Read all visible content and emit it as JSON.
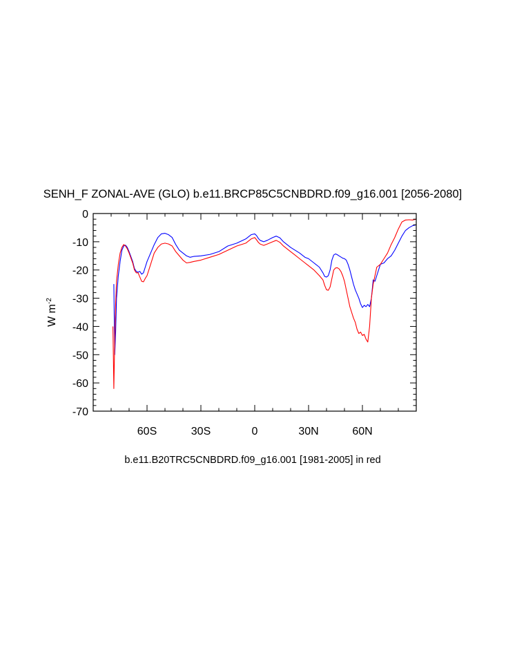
{
  "chart_data": {
    "type": "line",
    "title": "SENH_F ZONAL-AVE (GLO) b.e11.BRCP85C5CNBDRD.f09_g16.001 [2056-2080]",
    "xlabel": "b.e11.B20TRC5CNBDRD.f09_g16.001 [1981-2005] in red",
    "ylabel": {
      "base": "W m",
      "superscript": "-2"
    },
    "xlim": [
      -90,
      90
    ],
    "ylim": [
      -70,
      0
    ],
    "x_ticks": [
      {
        "value": -60,
        "label": "60S"
      },
      {
        "value": -30,
        "label": "30S"
      },
      {
        "value": 0,
        "label": "0"
      },
      {
        "value": 30,
        "label": "30N"
      },
      {
        "value": 60,
        "label": "60N"
      }
    ],
    "y_ticks": [
      {
        "value": 0,
        "label": "0"
      },
      {
        "value": -10,
        "label": "-10"
      },
      {
        "value": -20,
        "label": "-20"
      },
      {
        "value": -30,
        "label": "-30"
      },
      {
        "value": -40,
        "label": "-40"
      },
      {
        "value": -50,
        "label": "-50"
      },
      {
        "value": -60,
        "label": "-60"
      },
      {
        "value": -70,
        "label": "-70"
      }
    ],
    "series": [
      {
        "color": "#0000ff",
        "x": [
          -78.5,
          -78,
          -77.5,
          -77,
          -76,
          -75,
          -74,
          -73,
          -72,
          -71,
          -70,
          -68,
          -67,
          -66,
          -65,
          -64,
          -63,
          -62,
          -61,
          -60,
          -58,
          -56,
          -54,
          -52,
          -50,
          -48,
          -46,
          -44,
          -42,
          -40,
          -38,
          -36,
          -34,
          -30,
          -25,
          -20,
          -15,
          -10,
          -5,
          -2,
          0,
          1,
          2,
          3,
          5,
          7,
          10,
          12,
          14,
          16,
          18,
          20,
          22,
          25,
          28,
          30,
          33,
          36,
          38,
          39,
          40,
          41,
          42,
          43,
          44,
          45,
          46,
          47,
          48,
          49,
          50,
          51,
          52,
          53,
          54,
          55,
          56,
          57,
          58,
          59,
          60,
          61,
          62,
          63,
          64,
          65,
          66,
          67,
          68,
          70,
          72,
          74,
          76,
          78,
          80,
          82,
          84,
          86,
          88,
          90
        ],
        "y": [
          -25,
          -50,
          -42,
          -30,
          -22,
          -17,
          -13,
          -11.5,
          -11.2,
          -12,
          -13.5,
          -17,
          -19.5,
          -20.5,
          -20.8,
          -20.5,
          -21.5,
          -21,
          -19,
          -17,
          -14,
          -11,
          -8.5,
          -7.2,
          -7,
          -7.5,
          -8.5,
          -11,
          -13,
          -14,
          -15,
          -15.5,
          -15.2,
          -15,
          -14.5,
          -13.5,
          -11.5,
          -10.5,
          -9,
          -7.5,
          -7.2,
          -7.8,
          -8.8,
          -9.5,
          -10,
          -9.5,
          -8.5,
          -8,
          -8.6,
          -10,
          -11,
          -12,
          -12.8,
          -14,
          -15.5,
          -16,
          -17.5,
          -19,
          -21,
          -22.3,
          -22.5,
          -22,
          -20,
          -16.5,
          -14.7,
          -14.3,
          -14.6,
          -15,
          -15.4,
          -15.8,
          -16,
          -16.5,
          -18,
          -20,
          -22.5,
          -25,
          -27,
          -28.5,
          -30,
          -32,
          -33.3,
          -32.5,
          -33,
          -32.2,
          -33,
          -30,
          -23.5,
          -24,
          -22,
          -18,
          -17.5,
          -16,
          -15,
          -13,
          -10.5,
          -8,
          -6,
          -5,
          -4.3,
          -4
        ]
      },
      {
        "color": "#ff0000",
        "x": [
          -79,
          -78.5,
          -78,
          -77.5,
          -77,
          -76,
          -75,
          -74,
          -73,
          -72,
          -71,
          -70,
          -68,
          -67,
          -66,
          -65,
          -64,
          -63,
          -62,
          -61,
          -60,
          -58,
          -56,
          -54,
          -52,
          -50,
          -48,
          -46,
          -44,
          -42,
          -40,
          -38,
          -36,
          -34,
          -30,
          -25,
          -20,
          -15,
          -10,
          -5,
          -2,
          0,
          1,
          2,
          3,
          5,
          7,
          10,
          12,
          14,
          16,
          18,
          20,
          22,
          25,
          28,
          30,
          33,
          36,
          38,
          39,
          40,
          41,
          42,
          43,
          44,
          45,
          46,
          47,
          48,
          49,
          50,
          51,
          52,
          53,
          54,
          55,
          56,
          57,
          58,
          59,
          60,
          61,
          62,
          63,
          64,
          65,
          66,
          67,
          68,
          70,
          72,
          74,
          76,
          78,
          80,
          82,
          84,
          86,
          88,
          90
        ],
        "y": [
          -40,
          -62,
          -45,
          -32,
          -24,
          -18,
          -14,
          -12,
          -11,
          -11.5,
          -12.5,
          -14,
          -17.5,
          -20,
          -21,
          -21,
          -22.5,
          -24,
          -24.2,
          -23,
          -22,
          -18,
          -14,
          -12,
          -10.8,
          -10.5,
          -10.8,
          -11.5,
          -13.5,
          -15,
          -16.5,
          -17.5,
          -17.3,
          -17,
          -16.5,
          -15.5,
          -14.5,
          -13,
          -11.5,
          -10.5,
          -9,
          -8.5,
          -9.3,
          -10.2,
          -10.8,
          -11.3,
          -10.8,
          -10,
          -9.5,
          -10.2,
          -11.5,
          -12.5,
          -13.5,
          -14.5,
          -16,
          -17.5,
          -18.5,
          -20,
          -22,
          -23.5,
          -25.5,
          -27,
          -27.2,
          -26,
          -23,
          -20,
          -19.3,
          -19.2,
          -19.6,
          -20.5,
          -22,
          -24,
          -27,
          -30,
          -33,
          -35,
          -37,
          -38.5,
          -41,
          -42.5,
          -42,
          -43.2,
          -42.8,
          -44.5,
          -45.5,
          -40,
          -30,
          -25,
          -22,
          -19,
          -18,
          -16,
          -14,
          -11,
          -8.5,
          -5.5,
          -3,
          -2.3,
          -2.2,
          -2.3,
          -2
        ]
      }
    ]
  }
}
